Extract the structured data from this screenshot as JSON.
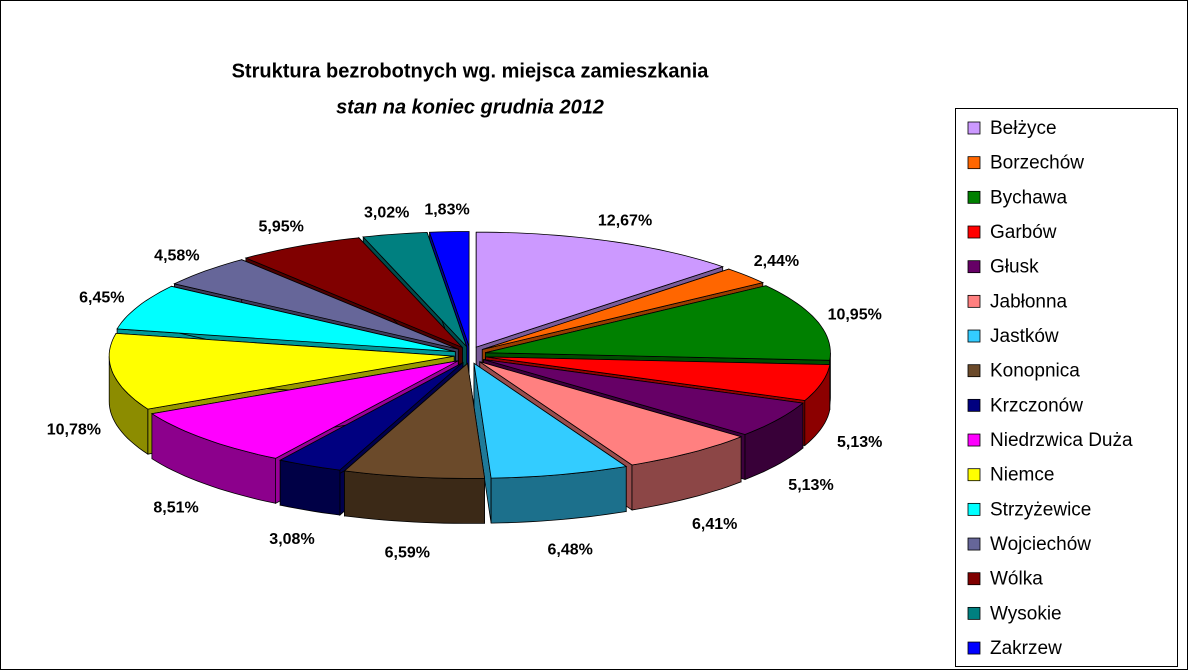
{
  "chart_data": {
    "type": "pie",
    "title": "Struktura bezrobotnych wg. miejsca zamieszkania",
    "subtitle": "stan na koniec grudnia 2012",
    "categories": [
      "Bełżyce",
      "Borzechów",
      "Bychawa",
      "Garbów",
      "Głusk",
      "Jabłonna",
      "Jastków",
      "Konopnica",
      "Krzczonów",
      "Niedrzwica Duża",
      "Niemce",
      "Strzyżewice",
      "Wojciechów",
      "Wólka",
      "Wysokie",
      "Zakrzew"
    ],
    "values": [
      12.67,
      2.44,
      10.95,
      5.13,
      5.13,
      6.41,
      6.48,
      6.59,
      3.08,
      8.51,
      10.78,
      6.45,
      4.58,
      5.95,
      3.02,
      1.83
    ],
    "value_labels": [
      "12,67%",
      "2,44%",
      "10,95%",
      "5,13%",
      "5,13%",
      "6,41%",
      "6,48%",
      "6,59%",
      "3,08%",
      "8,51%",
      "10,78%",
      "6,45%",
      "4,58%",
      "5,95%",
      "3,02%",
      "1,83%"
    ],
    "colors": [
      "#cc99ff",
      "#ff6600",
      "#008000",
      "#ff0000",
      "#660066",
      "#ff8080",
      "#33ccff",
      "#6b4a2a",
      "#000080",
      "#ff00ff",
      "#ffff00",
      "#00ffff",
      "#666699",
      "#800000",
      "#008080",
      "#0000ff"
    ],
    "legend": "right"
  }
}
